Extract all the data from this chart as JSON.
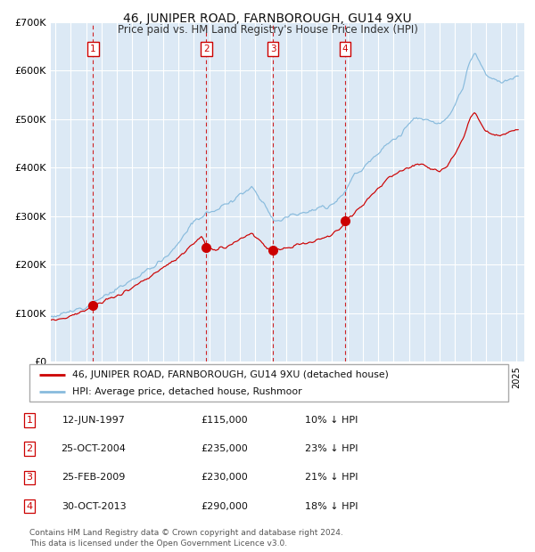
{
  "title": "46, JUNIPER ROAD, FARNBOROUGH, GU14 9XU",
  "subtitle": "Price paid vs. HM Land Registry's House Price Index (HPI)",
  "plot_bg_color": "#dce9f5",
  "grid_color": "#ffffff",
  "ylim": [
    0,
    700000
  ],
  "yticks": [
    0,
    100000,
    200000,
    300000,
    400000,
    500000,
    600000,
    700000
  ],
  "ytick_labels": [
    "£0",
    "£100K",
    "£200K",
    "£300K",
    "£400K",
    "£500K",
    "£600K",
    "£700K"
  ],
  "xlim_start": 1994.7,
  "xlim_end": 2025.5,
  "sale_dates": [
    1997.45,
    2004.82,
    2009.15,
    2013.83
  ],
  "sale_prices": [
    115000,
    235000,
    230000,
    290000
  ],
  "sale_labels": [
    "1",
    "2",
    "3",
    "4"
  ],
  "sale_color": "#cc0000",
  "hpi_color": "#88bbdd",
  "red_line_color": "#cc0000",
  "table_entries": [
    {
      "num": "1",
      "date": "12-JUN-1997",
      "price": "£115,000",
      "hpi": "10% ↓ HPI"
    },
    {
      "num": "2",
      "date": "25-OCT-2004",
      "price": "£235,000",
      "hpi": "23% ↓ HPI"
    },
    {
      "num": "3",
      "date": "25-FEB-2009",
      "price": "£230,000",
      "hpi": "21% ↓ HPI"
    },
    {
      "num": "4",
      "date": "30-OCT-2013",
      "price": "£290,000",
      "hpi": "18% ↓ HPI"
    }
  ],
  "footer": "Contains HM Land Registry data © Crown copyright and database right 2024.\nThis data is licensed under the Open Government Licence v3.0.",
  "legend_line1": "46, JUNIPER ROAD, FARNBOROUGH, GU14 9XU (detached house)",
  "legend_line2": "HPI: Average price, detached house, Rushmoor"
}
